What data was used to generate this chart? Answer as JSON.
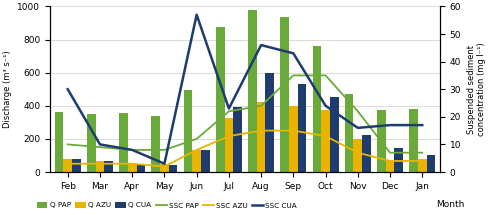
{
  "months": [
    "Feb",
    "Mar",
    "Apr",
    "May",
    "Jun",
    "Jul",
    "Aug",
    "Sep",
    "Oct",
    "Nov",
    "Dec",
    "Jan"
  ],
  "Q_PAP": [
    360,
    350,
    355,
    340,
    495,
    875,
    980,
    935,
    760,
    470,
    375,
    380
  ],
  "Q_AZU": [
    80,
    65,
    50,
    50,
    135,
    325,
    425,
    400,
    375,
    200,
    65,
    80
  ],
  "Q_CUA": [
    80,
    65,
    45,
    40,
    130,
    390,
    595,
    530,
    455,
    225,
    145,
    105
  ],
  "SSC_PAP": [
    10,
    9,
    8,
    8,
    12,
    22,
    24,
    35,
    35,
    22,
    7,
    7
  ],
  "SSC_AZU": [
    3,
    3,
    3,
    2,
    8,
    13,
    15,
    15,
    13,
    7,
    4,
    4
  ],
  "SSC_CUA": [
    30,
    10,
    8,
    3,
    57,
    23,
    46,
    43,
    24,
    16,
    17,
    17
  ],
  "color_Q_PAP": "#6aaa3a",
  "color_Q_AZU": "#e8b400",
  "color_Q_CUA": "#1f3c6e",
  "color_SSC_PAP": "#6aaa3a",
  "color_SSC_AZU": "#e8b400",
  "color_SSC_CUA": "#1f3c6e",
  "ylabel_left": "Discharge (m³ s⁻¹)",
  "ylabel_right": "Suspended sediment\nconcentration (mg l⁻¹)",
  "xlabel": "Month",
  "ylim_left": [
    0,
    1000
  ],
  "ylim_right": [
    0,
    60
  ],
  "bar_width": 0.27,
  "figsize": [
    5.0,
    2.15
  ],
  "dpi": 100
}
